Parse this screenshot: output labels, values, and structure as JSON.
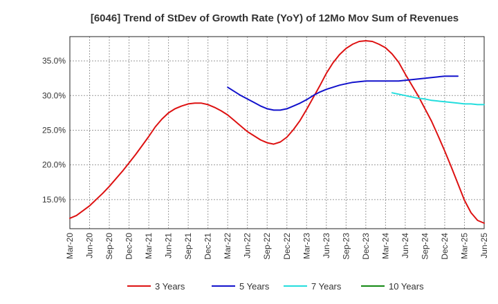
{
  "chart_data": {
    "type": "line",
    "title": "[6046]  Trend of StDev of Growth Rate (YoY) of 12Mo Mov Sum of Revenues",
    "xlabel": "",
    "ylabel": "",
    "x_ticks": [
      "Mar-20",
      "Jun-20",
      "Sep-20",
      "Dec-20",
      "Mar-21",
      "Jun-21",
      "Sep-21",
      "Dec-21",
      "Mar-22",
      "Jun-22",
      "Sep-22",
      "Dec-22",
      "Mar-23",
      "Jun-23",
      "Sep-23",
      "Dec-23",
      "Mar-24",
      "Jun-24",
      "Sep-24",
      "Dec-24",
      "Mar-25",
      "Jun-25"
    ],
    "y_ticks": [
      15.0,
      20.0,
      25.0,
      30.0,
      35.0
    ],
    "y_tick_labels": [
      "15.0%",
      "20.0%",
      "25.0%",
      "30.0%",
      "35.0%"
    ],
    "ylim": [
      10.8,
      38.5
    ],
    "x_range_months": [
      0,
      63
    ],
    "grid": true,
    "legend_position": "bottom",
    "series": [
      {
        "name": "3 Years",
        "color": "#dd1111",
        "start_month": 0,
        "values": [
          12.3,
          12.7,
          13.4,
          14.1,
          15.0,
          15.9,
          16.9,
          18.0,
          19.1,
          20.3,
          21.5,
          22.8,
          24.1,
          25.5,
          26.6,
          27.5,
          28.1,
          28.5,
          28.8,
          28.9,
          28.9,
          28.7,
          28.3,
          27.8,
          27.2,
          26.4,
          25.6,
          24.8,
          24.2,
          23.6,
          23.2,
          23.0,
          23.3,
          24.0,
          25.1,
          26.4,
          28.0,
          29.7,
          31.4,
          33.2,
          34.7,
          35.9,
          36.8,
          37.4,
          37.8,
          37.9,
          37.8,
          37.4,
          36.9,
          36.0,
          34.8,
          33.1,
          31.5,
          29.9,
          28.1,
          26.3,
          24.2,
          22.0,
          19.7,
          17.3,
          14.9,
          13.1,
          12.0,
          11.6
        ]
      },
      {
        "name": "5 Years",
        "color": "#1111cc",
        "start_month": 24,
        "values": [
          31.2,
          30.6,
          30.0,
          29.5,
          29.0,
          28.5,
          28.1,
          27.9,
          27.9,
          28.1,
          28.5,
          28.9,
          29.4,
          30.0,
          30.5,
          30.9,
          31.2,
          31.5,
          31.7,
          31.9,
          32.0,
          32.1,
          32.1,
          32.1,
          32.1,
          32.1,
          32.1,
          32.2,
          32.3,
          32.4,
          32.5,
          32.6,
          32.7,
          32.8,
          32.8,
          32.8
        ]
      },
      {
        "name": "7 Years",
        "color": "#22dddd",
        "start_month": 49,
        "values": [
          30.4,
          30.2,
          30.0,
          29.8,
          29.6,
          29.5,
          29.3,
          29.2,
          29.1,
          29.0,
          28.9,
          28.8,
          28.8,
          28.7,
          28.7
        ]
      },
      {
        "name": "10 Years",
        "color": "#118811",
        "start_month": null,
        "values": []
      }
    ]
  }
}
